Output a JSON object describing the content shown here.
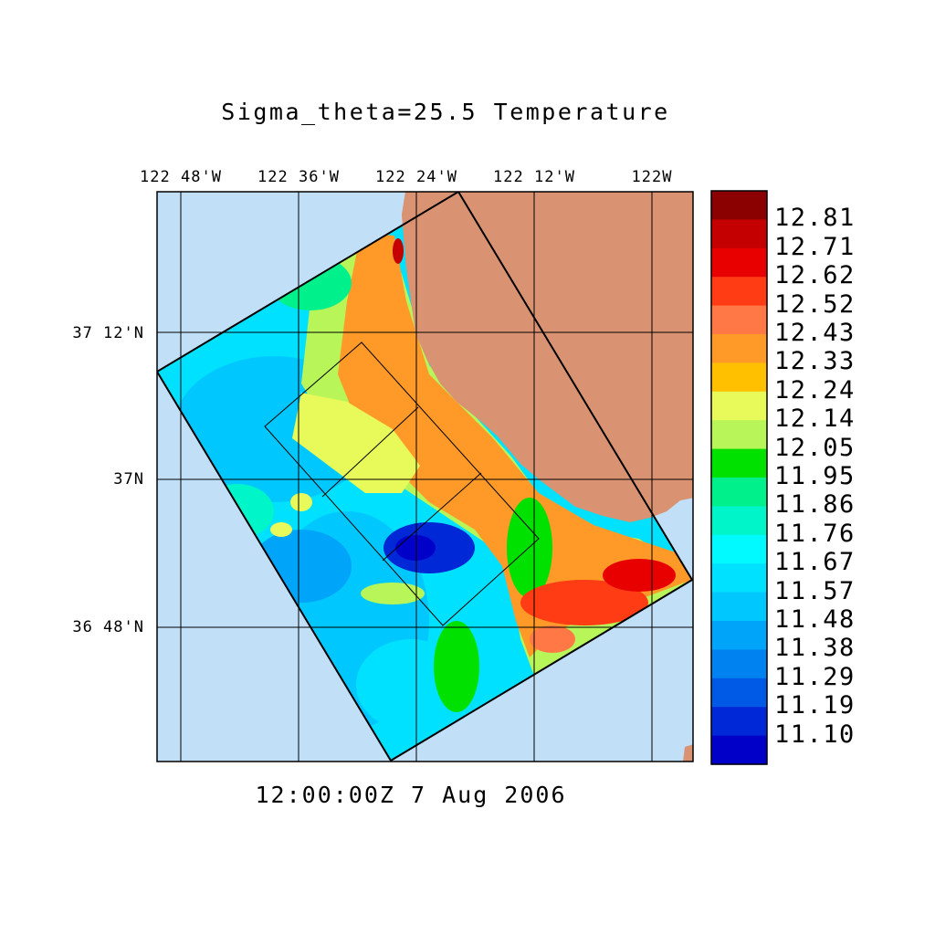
{
  "title": "Sigma_theta=25.5 Temperature",
  "timestamp": "12:00:00Z   7 Aug 2006",
  "axes": {
    "longitude_labels": [
      "122 48'W",
      "122 36'W",
      "122 24'W",
      "122 12'W",
      "122W"
    ],
    "latitude_labels": [
      "37 12'N",
      "37N",
      "36 48'N"
    ]
  },
  "colors": {
    "ocean": "#c2dff8",
    "land": "#d99272",
    "frame": "#000000"
  },
  "colorbar": {
    "labels": [
      "12.81",
      "12.71",
      "12.62",
      "12.52",
      "12.43",
      "12.33",
      "12.24",
      "12.14",
      "12.05",
      "11.95",
      "11.86",
      "11.76",
      "11.67",
      "11.57",
      "11.48",
      "11.38",
      "11.29",
      "11.19",
      "11.10"
    ],
    "colors": [
      "#8b0000",
      "#c40000",
      "#e80000",
      "#ff3c14",
      "#ff7846",
      "#ff9a28",
      "#ffc000",
      "#e8fa5a",
      "#b8f558",
      "#00e100",
      "#00f08c",
      "#00f5c8",
      "#00faff",
      "#00e1ff",
      "#00c8ff",
      "#00a5fa",
      "#0082f0",
      "#005ae6",
      "#0028d7",
      "#0000c8"
    ]
  }
}
